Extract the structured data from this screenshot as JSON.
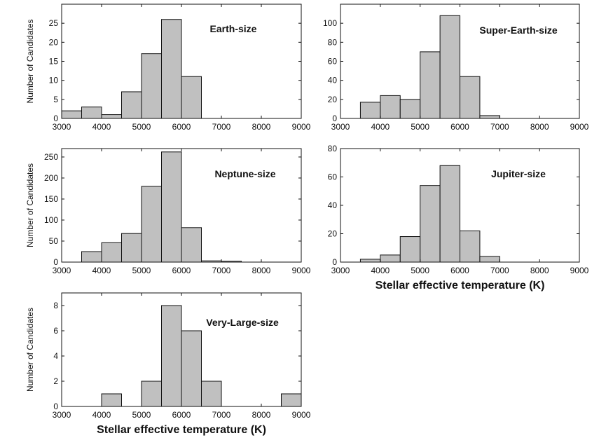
{
  "chart_data": [
    {
      "type": "bar",
      "title": "Earth-size",
      "ylabel": "Number of Candidates",
      "xlabel": "",
      "bin_edges": [
        3000,
        3500,
        4000,
        4500,
        5000,
        5500,
        6000,
        6500,
        7000,
        7500,
        8000,
        8500,
        9000
      ],
      "values": [
        2,
        3,
        1,
        7,
        17,
        26,
        11,
        0,
        0,
        0,
        0,
        0
      ],
      "xlim": [
        3000,
        9000
      ],
      "ylim": [
        0,
        30
      ],
      "xticks": [
        3000,
        4000,
        5000,
        6000,
        7000,
        8000,
        9000
      ],
      "yticks": [
        0,
        5,
        10,
        15,
        20,
        25
      ]
    },
    {
      "type": "bar",
      "title": "Super-Earth-size",
      "ylabel": "",
      "xlabel": "",
      "bin_edges": [
        3000,
        3500,
        4000,
        4500,
        5000,
        5500,
        6000,
        6500,
        7000,
        7500,
        8000,
        8500,
        9000
      ],
      "values": [
        0,
        17,
        24,
        20,
        70,
        108,
        44,
        3,
        0,
        0,
        0,
        0
      ],
      "xlim": [
        3000,
        9000
      ],
      "ylim": [
        0,
        120
      ],
      "xticks": [
        3000,
        4000,
        5000,
        6000,
        7000,
        8000,
        9000
      ],
      "yticks": [
        0,
        20,
        40,
        60,
        80,
        100
      ]
    },
    {
      "type": "bar",
      "title": "Neptune-size",
      "ylabel": "Number of Candidates",
      "xlabel": "",
      "bin_edges": [
        3000,
        3500,
        4000,
        4500,
        5000,
        5500,
        6000,
        6500,
        7000,
        7500,
        8000,
        8500,
        9000
      ],
      "values": [
        0,
        25,
        46,
        68,
        180,
        262,
        82,
        3,
        2,
        0,
        0,
        0
      ],
      "xlim": [
        3000,
        9000
      ],
      "ylim": [
        0,
        270
      ],
      "xticks": [
        3000,
        4000,
        5000,
        6000,
        7000,
        8000,
        9000
      ],
      "yticks": [
        0,
        50,
        100,
        150,
        200,
        250
      ]
    },
    {
      "type": "bar",
      "title": "Jupiter-size",
      "ylabel": "",
      "xlabel": "Stellar effective temperature (K)",
      "bin_edges": [
        3000,
        3500,
        4000,
        4500,
        5000,
        5500,
        6000,
        6500,
        7000,
        7500,
        8000,
        8500,
        9000
      ],
      "values": [
        0,
        2,
        5,
        18,
        54,
        68,
        22,
        4,
        0,
        0,
        0,
        0
      ],
      "xlim": [
        3000,
        9000
      ],
      "ylim": [
        0,
        80
      ],
      "xticks": [
        3000,
        4000,
        5000,
        6000,
        7000,
        8000,
        9000
      ],
      "yticks": [
        0,
        20,
        40,
        60,
        80
      ]
    },
    {
      "type": "bar",
      "title": "Very-Large-size",
      "ylabel": "Number of Candidates",
      "xlabel": "Stellar effective temperature (K)",
      "bin_edges": [
        3000,
        3500,
        4000,
        4500,
        5000,
        5500,
        6000,
        6500,
        7000,
        7500,
        8000,
        8500,
        9000
      ],
      "values": [
        0,
        0,
        1,
        0,
        2,
        8,
        6,
        2,
        0,
        0,
        0,
        1
      ],
      "xlim": [
        3000,
        9000
      ],
      "ylim": [
        0,
        9
      ],
      "xticks": [
        3000,
        4000,
        5000,
        6000,
        7000,
        8000,
        9000
      ],
      "yticks": [
        0,
        2,
        4,
        6,
        8
      ]
    }
  ]
}
